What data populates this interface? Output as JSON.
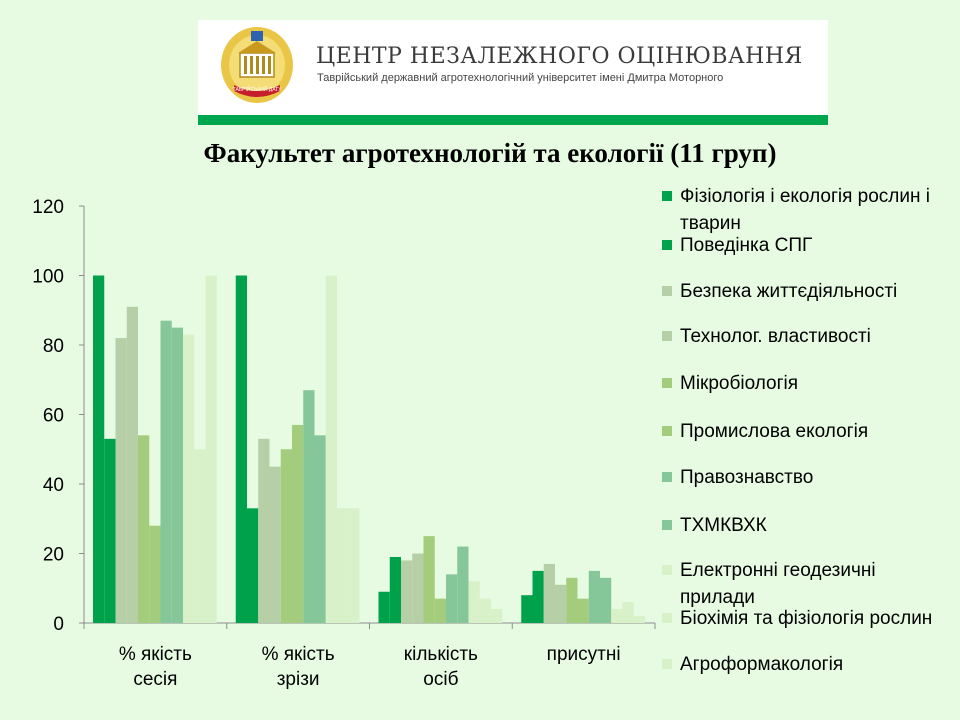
{
  "header": {
    "center_name": "ЦЕНТР НЕЗАЛЕЖНОГО ОЦІНЮВАННЯ",
    "university": "Таврійський державний агротехнологічний університет імені Дмитра Моторного",
    "emblem_text": "ТАВРІЙСЬКИЙ ДАТУ"
  },
  "chart_data": {
    "type": "bar",
    "title": "Факультет агротехнологій та екології  (11 груп)",
    "xlabel": "",
    "ylabel": "",
    "ylim": [
      0,
      120
    ],
    "yticks": [
      0,
      20,
      40,
      60,
      80,
      100,
      120
    ],
    "grid": false,
    "legend_position": "right",
    "categories": [
      [
        "% якість",
        "сесія"
      ],
      [
        "% якість",
        "зрізи"
      ],
      [
        "кількість",
        "осіб"
      ],
      [
        "присутні"
      ]
    ],
    "series": [
      {
        "name": "Фізіологія і екологія рослин і тварин",
        "color": "#00a14b",
        "values": [
          100,
          100,
          9,
          8
        ]
      },
      {
        "name": "Поведінка СПГ",
        "color": "#00a14b",
        "values": [
          53,
          33,
          19,
          15
        ]
      },
      {
        "name": "Безпека життєдіяльності",
        "color": "#b7cfa6",
        "values": [
          82,
          53,
          18,
          17
        ]
      },
      {
        "name": "Технолог. властивості",
        "color": "#b7cfa6",
        "values": [
          91,
          45,
          20,
          11
        ]
      },
      {
        "name": "Мікробіологія",
        "color": "#a3cc7c",
        "values": [
          54,
          50,
          25,
          13
        ]
      },
      {
        "name": "Промислова екологія",
        "color": "#a3cc7c",
        "values": [
          28,
          57,
          7,
          7
        ]
      },
      {
        "name": "Правознавство",
        "color": "#86c799",
        "values": [
          87,
          67,
          14,
          15
        ]
      },
      {
        "name": "ТХМКВХК",
        "color": "#86c799",
        "values": [
          85,
          54,
          22,
          13
        ]
      },
      {
        "name": "Електронні геодезичні прилади",
        "color": "#d8f1c8",
        "values": [
          83,
          100,
          12,
          4
        ]
      },
      {
        "name": "Біохімія та фізіологія рослин",
        "color": "#d8f1c8",
        "values": [
          50,
          33,
          7,
          6
        ]
      },
      {
        "name": "Агроформакологія",
        "color": "#d8f1c8",
        "values": [
          100,
          33,
          4,
          2
        ]
      }
    ]
  }
}
